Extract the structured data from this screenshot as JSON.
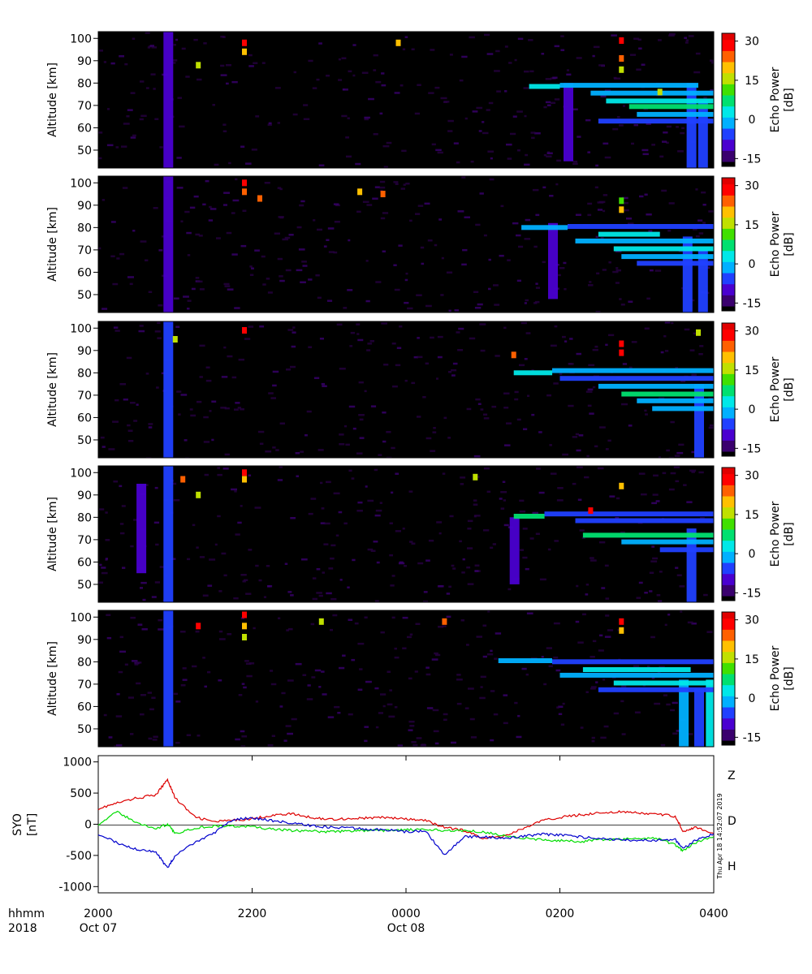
{
  "time_axis": {
    "row1_label": "hhmm",
    "row2_label": "2018",
    "ticks": [
      {
        "label": "2000",
        "date": "Oct 07",
        "hours": 0
      },
      {
        "label": "2200",
        "date": "",
        "hours": 2
      },
      {
        "label": "0000",
        "date": "Oct 08",
        "hours": 4
      },
      {
        "label": "0200",
        "date": "",
        "hours": 6
      },
      {
        "label": "0400",
        "date": "",
        "hours": 8
      }
    ],
    "range_hours": [
      0,
      8
    ]
  },
  "echo_panels": {
    "ylabel": "Altitude [km]",
    "yticks": [
      50,
      60,
      70,
      80,
      90,
      100
    ],
    "ylim": [
      42,
      103
    ],
    "colorbar": {
      "label_line1": "Echo Power",
      "label_line2": "[dB]",
      "ticks": [
        30,
        15,
        0,
        -15
      ],
      "range": [
        -18,
        33
      ],
      "colors": [
        "#000000",
        "#3a006e",
        "#4a00d0",
        "#2040ff",
        "#00b0ff",
        "#00e8e8",
        "#00e070",
        "#40e000",
        "#c0e000",
        "#ffc000",
        "#ff6000",
        "#ff0000",
        "#e00000"
      ]
    }
  },
  "magnetometer": {
    "ylabel_line1": "SYO",
    "ylabel_line2": "[nT]",
    "yticks": [
      1000,
      500,
      0,
      -500,
      -1000
    ],
    "ylim": [
      -1100,
      1100
    ],
    "timestamp": "Thu Apr 18 14:52:07 2019",
    "legend": [
      {
        "name": "Z",
        "color": "#dd0000"
      },
      {
        "name": "D",
        "color": "#00dd00"
      },
      {
        "name": "H",
        "color": "#0000cc"
      }
    ]
  },
  "chart_data": [
    {
      "type": "heatmap",
      "panel": 1,
      "xlabel": "",
      "ylabel": "Altitude [km]",
      "ylim": [
        42,
        103
      ],
      "zlabel": "Echo Power [dB]",
      "zlim": [
        -18,
        33
      ],
      "bands": [
        {
          "t": [
            5.6,
            6.0
          ],
          "alt": 78.5,
          "dB": 3
        },
        {
          "t": [
            6.0,
            7.8
          ],
          "alt": 79.0,
          "dB": 0
        },
        {
          "t": [
            6.4,
            8.0
          ],
          "alt": 75.5,
          "dB": -3
        },
        {
          "t": [
            6.6,
            8.0
          ],
          "alt": 72.0,
          "dB": 5
        },
        {
          "t": [
            6.9,
            8.0
          ],
          "alt": 69.5,
          "dB": 8
        },
        {
          "t": [
            7.0,
            8.0
          ],
          "alt": 66.0,
          "dB": -2
        },
        {
          "t": [
            6.5,
            8.0
          ],
          "alt": 63.0,
          "dB": -6
        }
      ],
      "columns": [
        {
          "t": 0.9,
          "alt": [
            42,
            103
          ],
          "dB": -8
        },
        {
          "t": 6.1,
          "alt": [
            45,
            80
          ],
          "dB": -8
        },
        {
          "t": 7.7,
          "alt": [
            42,
            80
          ],
          "dB": -4
        },
        {
          "t": 7.85,
          "alt": [
            42,
            72
          ],
          "dB": -4
        }
      ],
      "spots": [
        {
          "t": 1.9,
          "alt": 98,
          "dB": 30
        },
        {
          "t": 1.9,
          "alt": 94,
          "dB": 22
        },
        {
          "t": 1.3,
          "alt": 88,
          "dB": 18
        },
        {
          "t": 3.9,
          "alt": 98,
          "dB": 20
        },
        {
          "t": 6.8,
          "alt": 99,
          "dB": 30
        },
        {
          "t": 6.8,
          "alt": 91,
          "dB": 24
        },
        {
          "t": 6.8,
          "alt": 86,
          "dB": 15
        },
        {
          "t": 7.3,
          "alt": 76,
          "dB": 18
        }
      ]
    },
    {
      "type": "heatmap",
      "panel": 2,
      "xlabel": "",
      "ylabel": "Altitude [km]",
      "ylim": [
        42,
        103
      ],
      "zlabel": "Echo Power [dB]",
      "zlim": [
        -18,
        33
      ],
      "bands": [
        {
          "t": [
            5.5,
            6.1
          ],
          "alt": 80.0,
          "dB": 0
        },
        {
          "t": [
            6.1,
            8.0
          ],
          "alt": 80.5,
          "dB": -6
        },
        {
          "t": [
            6.5,
            7.3
          ],
          "alt": 77.0,
          "dB": 3
        },
        {
          "t": [
            6.2,
            8.0
          ],
          "alt": 74.0,
          "dB": -3
        },
        {
          "t": [
            6.7,
            8.0
          ],
          "alt": 70.5,
          "dB": 5
        },
        {
          "t": [
            6.8,
            8.0
          ],
          "alt": 67.0,
          "dB": 0
        },
        {
          "t": [
            7.0,
            8.0
          ],
          "alt": 64.0,
          "dB": -4
        }
      ],
      "columns": [
        {
          "t": 0.9,
          "alt": [
            42,
            103
          ],
          "dB": -8
        },
        {
          "t": 5.9,
          "alt": [
            48,
            82
          ],
          "dB": -8
        },
        {
          "t": 7.65,
          "alt": [
            42,
            76
          ],
          "dB": -5
        },
        {
          "t": 7.85,
          "alt": [
            42,
            70
          ],
          "dB": -5
        }
      ],
      "spots": [
        {
          "t": 1.9,
          "alt": 100,
          "dB": 30
        },
        {
          "t": 1.9,
          "alt": 96,
          "dB": 24
        },
        {
          "t": 2.1,
          "alt": 93,
          "dB": 26
        },
        {
          "t": 3.4,
          "alt": 96,
          "dB": 20
        },
        {
          "t": 3.7,
          "alt": 95,
          "dB": 26
        },
        {
          "t": 6.8,
          "alt": 88,
          "dB": 22
        },
        {
          "t": 6.8,
          "alt": 92,
          "dB": 12
        }
      ]
    },
    {
      "type": "heatmap",
      "panel": 3,
      "xlabel": "",
      "ylabel": "Altitude [km]",
      "ylim": [
        42,
        103
      ],
      "zlabel": "Echo Power [dB]",
      "zlim": [
        -18,
        33
      ],
      "bands": [
        {
          "t": [
            5.4,
            5.9
          ],
          "alt": 80.0,
          "dB": 3
        },
        {
          "t": [
            5.9,
            8.0
          ],
          "alt": 81.0,
          "dB": -3
        },
        {
          "t": [
            6.0,
            8.0
          ],
          "alt": 77.5,
          "dB": -4
        },
        {
          "t": [
            6.5,
            8.0
          ],
          "alt": 74.0,
          "dB": -2
        },
        {
          "t": [
            6.8,
            8.0
          ],
          "alt": 70.5,
          "dB": 7
        },
        {
          "t": [
            7.0,
            8.0
          ],
          "alt": 67.5,
          "dB": 0
        },
        {
          "t": [
            7.2,
            8.0
          ],
          "alt": 64.0,
          "dB": -3
        }
      ],
      "columns": [
        {
          "t": 0.9,
          "alt": [
            42,
            103
          ],
          "dB": -6
        },
        {
          "t": 7.8,
          "alt": [
            42,
            75
          ],
          "dB": -5
        }
      ],
      "spots": [
        {
          "t": 1.9,
          "alt": 99,
          "dB": 28
        },
        {
          "t": 5.4,
          "alt": 88,
          "dB": 24
        },
        {
          "t": 6.8,
          "alt": 93,
          "dB": 28
        },
        {
          "t": 6.8,
          "alt": 89,
          "dB": 30
        },
        {
          "t": 7.8,
          "alt": 98,
          "dB": 18
        },
        {
          "t": 1.0,
          "alt": 95,
          "dB": 15
        }
      ]
    },
    {
      "type": "heatmap",
      "panel": 4,
      "xlabel": "",
      "ylabel": "Altitude [km]",
      "ylim": [
        42,
        103
      ],
      "zlabel": "Echo Power [dB]",
      "zlim": [
        -18,
        33
      ],
      "bands": [
        {
          "t": [
            5.4,
            5.8
          ],
          "alt": 80.5,
          "dB": 6
        },
        {
          "t": [
            5.8,
            8.0
          ],
          "alt": 81.5,
          "dB": -4
        },
        {
          "t": [
            6.2,
            8.0
          ],
          "alt": 78.5,
          "dB": -5
        },
        {
          "t": [
            6.3,
            8.0
          ],
          "alt": 72.0,
          "dB": 6
        },
        {
          "t": [
            6.8,
            8.0
          ],
          "alt": 69.0,
          "dB": 0
        },
        {
          "t": [
            7.3,
            8.0
          ],
          "alt": 65.5,
          "dB": -4
        }
      ],
      "columns": [
        {
          "t": 0.9,
          "alt": [
            42,
            103
          ],
          "dB": -4
        },
        {
          "t": 0.55,
          "alt": [
            55,
            95
          ],
          "dB": -9
        },
        {
          "t": 5.4,
          "alt": [
            50,
            80
          ],
          "dB": -8
        },
        {
          "t": 7.7,
          "alt": [
            42,
            75
          ],
          "dB": -5
        }
      ],
      "spots": [
        {
          "t": 1.9,
          "alt": 100,
          "dB": 30
        },
        {
          "t": 1.9,
          "alt": 97,
          "dB": 22
        },
        {
          "t": 1.1,
          "alt": 97,
          "dB": 24
        },
        {
          "t": 1.3,
          "alt": 90,
          "dB": 18
        },
        {
          "t": 6.8,
          "alt": 94,
          "dB": 20
        },
        {
          "t": 6.4,
          "alt": 83,
          "dB": 30
        },
        {
          "t": 4.9,
          "alt": 98,
          "dB": 16
        }
      ]
    },
    {
      "type": "heatmap",
      "panel": 5,
      "xlabel": "",
      "ylabel": "Altitude [km]",
      "ylim": [
        42,
        103
      ],
      "zlabel": "Echo Power [dB]",
      "zlim": [
        -18,
        33
      ],
      "bands": [
        {
          "t": [
            5.2,
            5.9
          ],
          "alt": 80.5,
          "dB": 0
        },
        {
          "t": [
            5.9,
            8.0
          ],
          "alt": 80.0,
          "dB": -5
        },
        {
          "t": [
            6.3,
            7.7
          ],
          "alt": 76.5,
          "dB": 4
        },
        {
          "t": [
            6.0,
            8.0
          ],
          "alt": 74.0,
          "dB": -3
        },
        {
          "t": [
            6.7,
            8.0
          ],
          "alt": 70.5,
          "dB": 5
        },
        {
          "t": [
            6.5,
            8.0
          ],
          "alt": 67.5,
          "dB": -4
        }
      ],
      "columns": [
        {
          "t": 0.9,
          "alt": [
            42,
            103
          ],
          "dB": -7
        },
        {
          "t": 7.6,
          "alt": [
            42,
            72
          ],
          "dB": 0
        },
        {
          "t": 7.8,
          "alt": [
            42,
            68
          ],
          "dB": -4
        },
        {
          "t": 7.95,
          "alt": [
            42,
            72
          ],
          "dB": 2
        }
      ],
      "spots": [
        {
          "t": 1.9,
          "alt": 101,
          "dB": 30
        },
        {
          "t": 1.9,
          "alt": 96,
          "dB": 22
        },
        {
          "t": 1.9,
          "alt": 91,
          "dB": 14
        },
        {
          "t": 2.9,
          "alt": 98,
          "dB": 16
        },
        {
          "t": 4.5,
          "alt": 98,
          "dB": 26
        },
        {
          "t": 6.8,
          "alt": 98,
          "dB": 30
        },
        {
          "t": 6.8,
          "alt": 94,
          "dB": 20
        },
        {
          "t": 1.3,
          "alt": 96,
          "dB": 28
        }
      ]
    },
    {
      "type": "line",
      "panel": 6,
      "xlabel": "",
      "ylabel": "SYO [nT]",
      "ylim": [
        -1100,
        1100
      ],
      "x_hours": [
        0,
        0.25,
        0.5,
        0.75,
        0.9,
        1.0,
        1.25,
        1.5,
        1.75,
        2.0,
        2.25,
        2.5,
        2.75,
        3.0,
        3.25,
        3.5,
        3.75,
        4.0,
        4.25,
        4.5,
        4.75,
        5.0,
        5.25,
        5.5,
        5.75,
        6.0,
        6.25,
        6.5,
        6.75,
        7.0,
        7.25,
        7.5,
        7.6,
        7.75,
        8.0
      ],
      "series": [
        {
          "name": "Z",
          "color": "#dd0000",
          "values": [
            250,
            340,
            420,
            470,
            720,
            420,
            120,
            40,
            60,
            90,
            140,
            170,
            110,
            80,
            90,
            100,
            110,
            80,
            60,
            -50,
            -100,
            -220,
            -200,
            -80,
            50,
            110,
            150,
            180,
            200,
            180,
            160,
            130,
            -110,
            -50,
            -150
          ]
        },
        {
          "name": "D",
          "color": "#00dd00",
          "values": [
            0,
            200,
            20,
            -70,
            0,
            -150,
            -60,
            -30,
            -30,
            -40,
            -80,
            -100,
            -110,
            -120,
            -110,
            -100,
            -100,
            -90,
            -90,
            -100,
            -100,
            -120,
            -180,
            -220,
            -250,
            -260,
            -280,
            -250,
            -240,
            -230,
            -220,
            -330,
            -420,
            -300,
            -200
          ]
        },
        {
          "name": "H",
          "color": "#0000cc",
          "values": [
            -150,
            -300,
            -400,
            -450,
            -700,
            -500,
            -300,
            -150,
            80,
            100,
            60,
            20,
            -20,
            -50,
            -60,
            -80,
            -90,
            -120,
            -100,
            -500,
            -200,
            -200,
            -220,
            -200,
            -160,
            -170,
            -200,
            -230,
            -250,
            -260,
            -260,
            -250,
            -400,
            -260,
            -150
          ]
        }
      ]
    }
  ]
}
